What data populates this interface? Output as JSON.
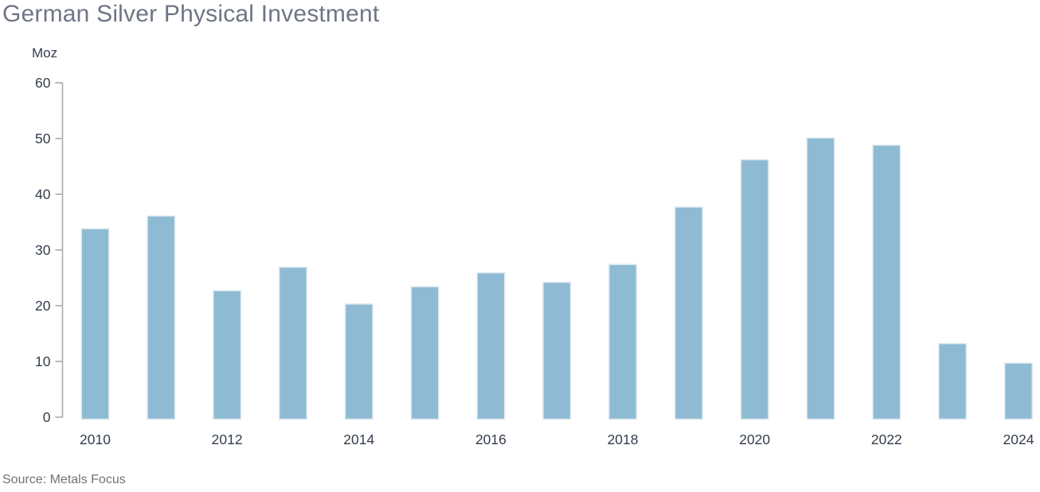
{
  "chart": {
    "title": "German Silver Physical Investment",
    "unit_label": "Moz",
    "source": "Source: Metals Focus"
  },
  "chart_data": {
    "type": "bar",
    "title": "German Silver Physical Investment",
    "xlabel": "",
    "ylabel": "Moz",
    "categories": [
      "2010",
      "2011",
      "2012",
      "2013",
      "2014",
      "2015",
      "2016",
      "2017",
      "2018",
      "2019",
      "2020",
      "2021",
      "2022",
      "2023",
      "2024"
    ],
    "values": [
      33.8,
      36.1,
      22.7,
      26.9,
      20.3,
      23.4,
      25.9,
      24.2,
      27.4,
      37.7,
      46.2,
      50.1,
      48.8,
      13.2,
      9.7
    ],
    "ylim": [
      0,
      60
    ],
    "yticks": [
      0,
      10,
      20,
      30,
      40,
      50,
      60
    ],
    "xtick_labels": [
      "2010",
      "2012",
      "2014",
      "2016",
      "2018",
      "2020",
      "2022",
      "2024"
    ],
    "xtick_every": 2,
    "grid": false,
    "legend_position": "none",
    "source": "Source: Metals Focus",
    "colors": {
      "bar_fill": "#8FBAD3",
      "bar_edge": "#DCE8F0",
      "axis_line": "#A9A9A9",
      "tick_label": "#333D4E",
      "title": "#6F7585",
      "source_text": "#71717B"
    }
  }
}
